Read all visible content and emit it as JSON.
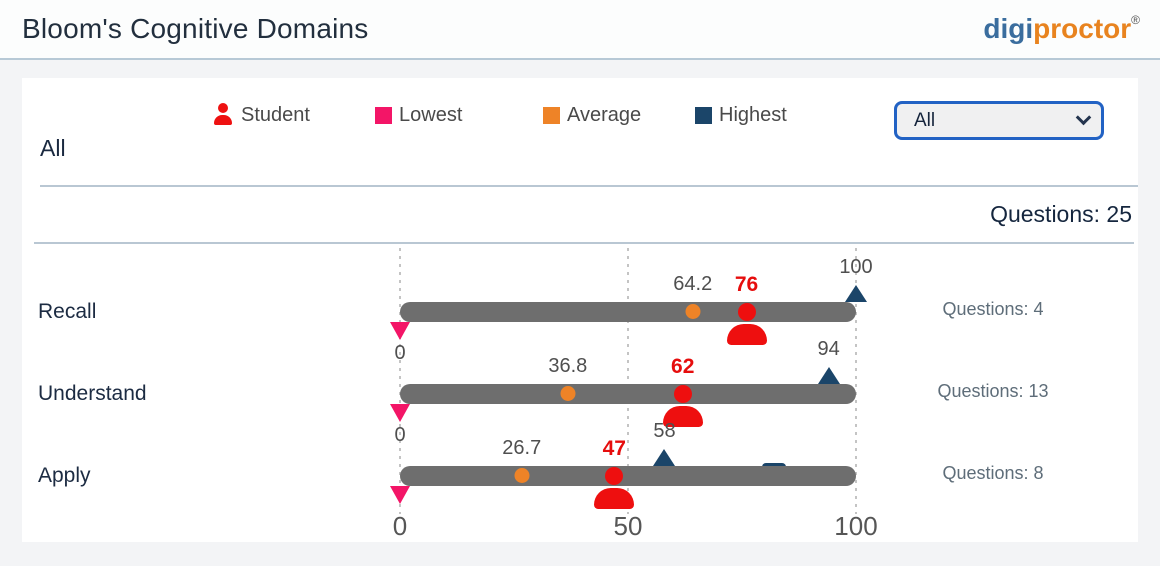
{
  "header": {
    "title": "Bloom's Cognitive Domains",
    "logo": {
      "part1": "digi",
      "part2": "proctor",
      "registered_mark": "®",
      "blue": "#3a6d9e",
      "orange": "#e8831f"
    }
  },
  "legend": {
    "items": [
      {
        "label": "Student",
        "icon": "person-icon",
        "color": "#ee1111"
      },
      {
        "label": "Lowest",
        "icon": "square-swatch",
        "color": "#f31567"
      },
      {
        "label": "Average",
        "icon": "square-swatch",
        "color": "#ee8327"
      },
      {
        "label": "Highest",
        "icon": "square-swatch",
        "color": "#1b4569"
      }
    ]
  },
  "filter_dropdown": {
    "selected_value": "All"
  },
  "section": {
    "title": "All",
    "total_questions_label": "Questions: 25"
  },
  "chart_data": {
    "type": "bar",
    "variant": "horizontal-marker-bars",
    "title": "Bloom's Cognitive Domains",
    "axis": {
      "range": [
        0,
        100
      ],
      "ticks": [
        "0",
        "50",
        "100"
      ],
      "tick_positions": [
        0,
        50,
        100
      ],
      "gridlines": "dotted-vertical"
    },
    "marker_series": [
      "lowest",
      "average",
      "student",
      "highest"
    ],
    "rows": [
      {
        "label": "Recall",
        "questions_label": "Questions: 4",
        "lowest": 0,
        "average": 64.2,
        "student": 76,
        "highest": 100
      },
      {
        "label": "Understand",
        "questions_label": "Questions: 13",
        "lowest": 0,
        "average": 36.8,
        "student": 62,
        "highest": 94
      },
      {
        "label": "Apply",
        "questions_label": "Questions: 8",
        "lowest": 0,
        "average": 26.7,
        "student": 47,
        "highest": 58,
        "partial_marker": 82
      }
    ],
    "colors": {
      "bar": "#6e6e6e",
      "student": "#ee1111",
      "lowest": "#f31567",
      "average": "#ee8327",
      "highest": "#1b4569"
    }
  }
}
